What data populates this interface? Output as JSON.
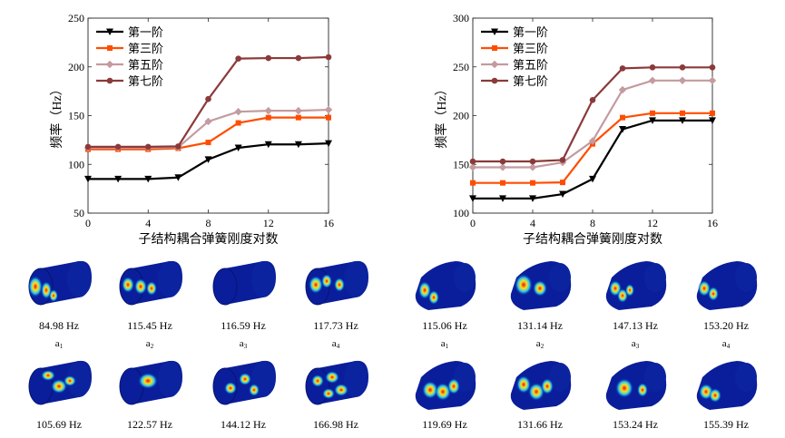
{
  "chart_data": [
    {
      "type": "line",
      "xlabel": "子结构耦合弹簧刚度对数",
      "ylabel": "频率（Hz）",
      "xlim": [
        0,
        16
      ],
      "ylim": [
        50,
        250
      ],
      "xticks": [
        0,
        4,
        8,
        12,
        16
      ],
      "yticks": [
        50,
        100,
        150,
        200,
        250
      ],
      "x": [
        0,
        2,
        4,
        6,
        8,
        10,
        12,
        14,
        16
      ],
      "legend_position": "top-left",
      "grid": false,
      "series": [
        {
          "name": "第一阶",
          "color": "#000000",
          "marker": "triangle-down",
          "values": [
            85,
            85,
            85,
            86.5,
            105,
            117,
            120.5,
            120.5,
            121.5
          ]
        },
        {
          "name": "第三阶",
          "color": "#ff4d00",
          "marker": "square",
          "values": [
            115.5,
            115.5,
            115.5,
            116.5,
            122.5,
            142.5,
            148,
            148,
            148
          ]
        },
        {
          "name": "第五阶",
          "color": "#c39ba0",
          "marker": "diamond",
          "values": [
            117,
            117,
            117,
            117.5,
            144,
            154,
            155,
            155,
            156
          ]
        },
        {
          "name": "第七阶",
          "color": "#8b3a3a",
          "marker": "circle",
          "values": [
            118,
            118,
            118,
            118.5,
            167,
            208.5,
            209,
            209,
            210
          ]
        }
      ]
    },
    {
      "type": "line",
      "xlabel": "子结构耦合弹簧刚度对数",
      "ylabel": "频率（Hz）",
      "xlim": [
        0,
        16
      ],
      "ylim": [
        100,
        300
      ],
      "xticks": [
        0,
        4,
        8,
        12,
        16
      ],
      "yticks": [
        100,
        150,
        200,
        250,
        300
      ],
      "x": [
        0,
        2,
        4,
        6,
        8,
        10,
        12,
        14,
        16
      ],
      "legend_position": "top-left",
      "grid": false,
      "series": [
        {
          "name": "第一阶",
          "color": "#000000",
          "marker": "triangle-down",
          "values": [
            115,
            115,
            115,
            119.5,
            135,
            186,
            195,
            195,
            195
          ]
        },
        {
          "name": "第三阶",
          "color": "#ff4d00",
          "marker": "square",
          "values": [
            131,
            131,
            131,
            131.5,
            171,
            198,
            202.5,
            202.5,
            202.5
          ]
        },
        {
          "name": "第五阶",
          "color": "#c39ba0",
          "marker": "diamond",
          "values": [
            147,
            147,
            147,
            152,
            174,
            226.5,
            236,
            236,
            236
          ]
        },
        {
          "name": "第七阶",
          "color": "#8b3a3a",
          "marker": "circle",
          "values": [
            153,
            153,
            153,
            154.5,
            216,
            248.5,
            249.5,
            249.5,
            249.5
          ]
        }
      ]
    }
  ],
  "mode_shapes": {
    "cylinder": {
      "row1": [
        {
          "freq": "84.98 Hz",
          "label": "a",
          "index": "1"
        },
        {
          "freq": "115.45 Hz",
          "label": "a",
          "index": "2"
        },
        {
          "freq": "116.59 Hz",
          "label": "a",
          "index": "3"
        },
        {
          "freq": "117.73 Hz",
          "label": "a",
          "index": "4"
        }
      ],
      "row2": [
        {
          "freq": "105.69 Hz"
        },
        {
          "freq": "122.57 Hz"
        },
        {
          "freq": "144.12 Hz"
        },
        {
          "freq": "166.98 Hz"
        }
      ]
    },
    "cone": {
      "row1": [
        {
          "freq": "115.06 Hz",
          "label": "a",
          "index": "1"
        },
        {
          "freq": "131.14 Hz",
          "label": "a",
          "index": "2"
        },
        {
          "freq": "147.13 Hz",
          "label": "a",
          "index": "3"
        },
        {
          "freq": "153.20 Hz",
          "label": "a",
          "index": "4"
        }
      ],
      "row2": [
        {
          "freq": "119.69 Hz"
        },
        {
          "freq": "131.66 Hz"
        },
        {
          "freq": "153.24 Hz"
        },
        {
          "freq": "155.39 Hz"
        }
      ]
    }
  },
  "colors": {
    "mode_base": "#0a1e9b",
    "mode_hot": "#e5141b",
    "mode_warm": "#ffe01a",
    "mode_mid": "#28c7f0"
  }
}
